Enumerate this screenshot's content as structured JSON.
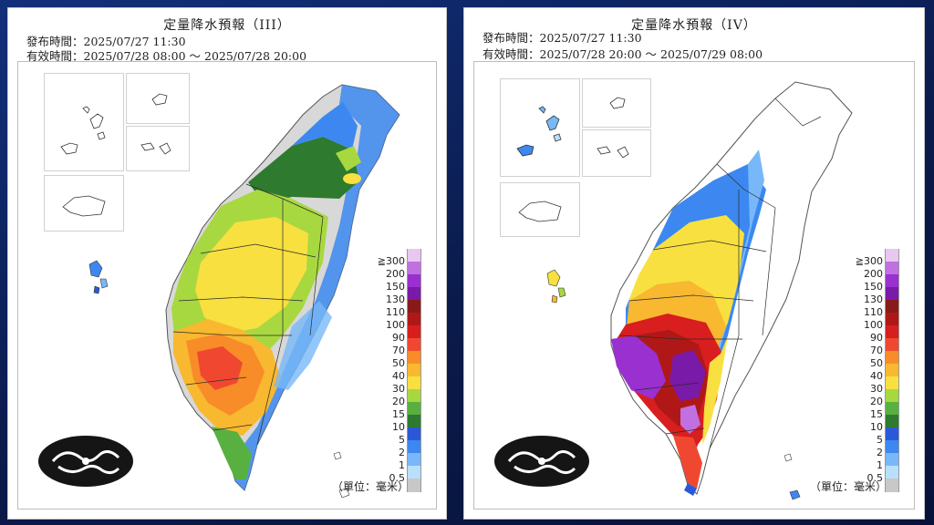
{
  "panels": [
    {
      "title": "定量降水預報（III）",
      "issued": "發布時間：2025/07/27 11:30",
      "valid": "有效時間：2025/07/28 08:00 ～ 2025/07/28 20:00",
      "unit": "（單位：毫米）"
    },
    {
      "title": "定量降水預報（IV）",
      "issued": "發布時間：2025/07/27 11:30",
      "valid": "有效時間：2025/07/28 20:00 ～ 2025/07/29 08:00",
      "unit": "（單位：毫米）"
    }
  ],
  "legend": [
    {
      "label": "≧300",
      "color": "#e8c8f0"
    },
    {
      "label": "200",
      "color": "#c070e0"
    },
    {
      "label": "150",
      "color": "#9a30d0"
    },
    {
      "label": "130",
      "color": "#7a1aa8"
    },
    {
      "label": "110",
      "color": "#8a1a1a"
    },
    {
      "label": "100",
      "color": "#b01818"
    },
    {
      "label": "90",
      "color": "#d81e1e"
    },
    {
      "label": "70",
      "color": "#f04830"
    },
    {
      "label": "50",
      "color": "#f88c28"
    },
    {
      "label": "40",
      "color": "#f8b830"
    },
    {
      "label": "30",
      "color": "#f8e040"
    },
    {
      "label": "20",
      "color": "#a8d840"
    },
    {
      "label": "15",
      "color": "#58b040"
    },
    {
      "label": "10",
      "color": "#2e7a2e"
    },
    {
      "label": "5",
      "color": "#2a58d8"
    },
    {
      "label": "2",
      "color": "#3c88f0"
    },
    {
      "label": "1",
      "color": "#78b8f8"
    },
    {
      "label": "0.5",
      "color": "#b8e0fc"
    },
    {
      "label": "",
      "color": "#c8c8c8"
    }
  ],
  "colors": {
    "frame": "#bdbdbd",
    "background": "#0b1f55",
    "county_lines": "#2a2a2a"
  }
}
